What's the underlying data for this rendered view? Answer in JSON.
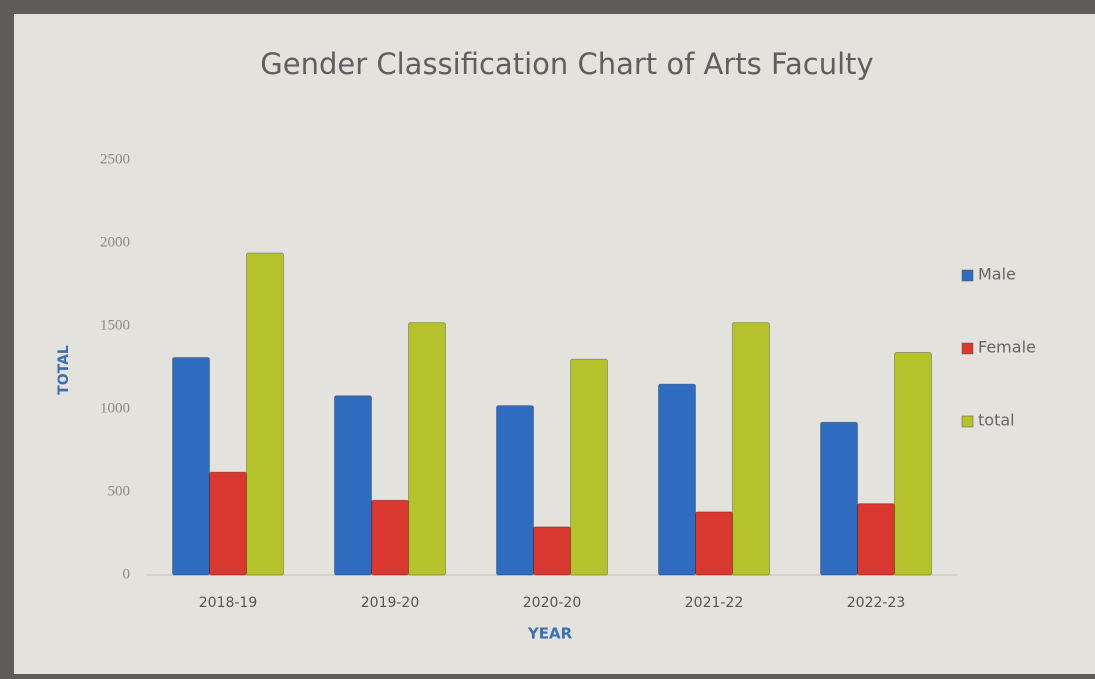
{
  "chart_data": {
    "type": "bar",
    "title": "Gender Classification Chart of  Arts Faculty",
    "x_label": "YEAR",
    "y_label": "TOTAL",
    "categories": [
      "2018-19",
      "2019-20",
      "2020-20",
      "2021-22",
      "2022-23"
    ],
    "series": [
      {
        "name": "Male",
        "color": "#2f6cc0",
        "values": [
          1310,
          1080,
          1020,
          1150,
          920
        ]
      },
      {
        "name": "Female",
        "color": "#d8382f",
        "values": [
          620,
          450,
          290,
          380,
          430
        ]
      },
      {
        "name": "total",
        "color": "#b6c22b",
        "values": [
          1940,
          1520,
          1300,
          1520,
          1340
        ]
      }
    ],
    "ylim": [
      0,
      2500
    ],
    "yticks": [
      0,
      500,
      1000,
      1500,
      2000,
      2500
    ],
    "grid": false,
    "legend": "right"
  }
}
